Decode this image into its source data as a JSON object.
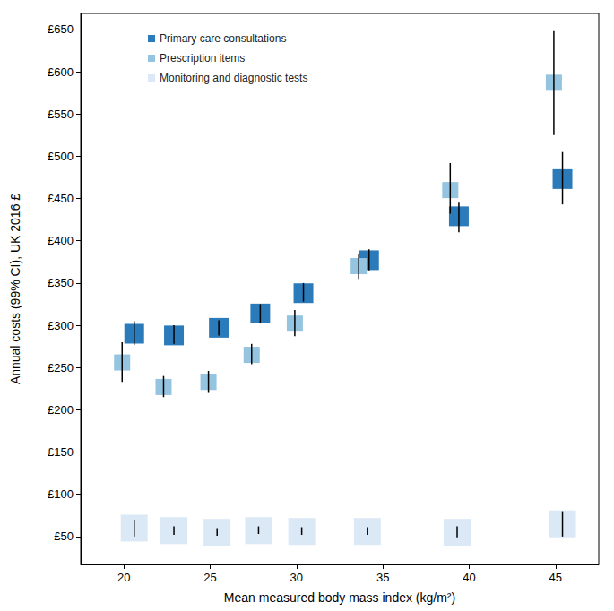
{
  "chart_data": {
    "type": "scatter",
    "x_label": "Mean measured body mass index (kg/m²)",
    "y_label": "Annual costs (99% CI), UK 2016 £",
    "xlim": [
      17.5,
      47.5
    ],
    "xticks": [
      20,
      25,
      30,
      35,
      40,
      45
    ],
    "ylim": [
      17,
      669
    ],
    "yticks": [
      {
        "value": 50,
        "label": "£50"
      },
      {
        "value": 100,
        "label": "£100"
      },
      {
        "value": 150,
        "label": "£150"
      },
      {
        "value": 200,
        "label": "£200"
      },
      {
        "value": 250,
        "label": "£250"
      },
      {
        "value": 300,
        "label": "£300"
      },
      {
        "value": 350,
        "label": "£350"
      },
      {
        "value": 400,
        "label": "£400"
      },
      {
        "value": 450,
        "label": "£450"
      },
      {
        "value": 500,
        "label": "£500"
      },
      {
        "value": 550,
        "label": "£550"
      },
      {
        "value": 600,
        "label": "£600"
      },
      {
        "value": 650,
        "label": "£650"
      }
    ],
    "grid": false,
    "legend": "top-left",
    "marker": "square",
    "series": [
      {
        "name": "Primary care consultations",
        "color": "#2b7bba",
        "x": [
          20.6,
          22.9,
          25.5,
          27.9,
          30.4,
          34.2,
          39.4,
          45.4
        ],
        "values": [
          290,
          288,
          297,
          314,
          338,
          377,
          429,
          473
        ],
        "ci_low": [
          277,
          278,
          288,
          303,
          328,
          365,
          410,
          443
        ],
        "ci_high": [
          305,
          300,
          306,
          325,
          350,
          390,
          445,
          505
        ]
      },
      {
        "name": "Prescription items",
        "color": "#94c4df",
        "x": [
          19.9,
          22.3,
          24.9,
          27.4,
          29.9,
          33.6,
          38.9,
          44.9
        ],
        "values": [
          256,
          227,
          233,
          265,
          302,
          370,
          460,
          587
        ],
        "ci_low": [
          233,
          215,
          220,
          254,
          287,
          355,
          432,
          525
        ],
        "ci_high": [
          280,
          240,
          246,
          278,
          318,
          385,
          492,
          648
        ]
      },
      {
        "name": "Monitoring and diagnostic tests",
        "color": "#dbe9f6",
        "x": [
          20.6,
          22.9,
          25.4,
          27.8,
          30.3,
          34.1,
          39.3,
          45.4
        ],
        "values": [
          60,
          57,
          55,
          57,
          56,
          56,
          55,
          65
        ],
        "ci_low": [
          50,
          52,
          51,
          53,
          52,
          52,
          49,
          50
        ],
        "ci_high": [
          70,
          62,
          60,
          62,
          61,
          61,
          62,
          80
        ]
      }
    ]
  }
}
